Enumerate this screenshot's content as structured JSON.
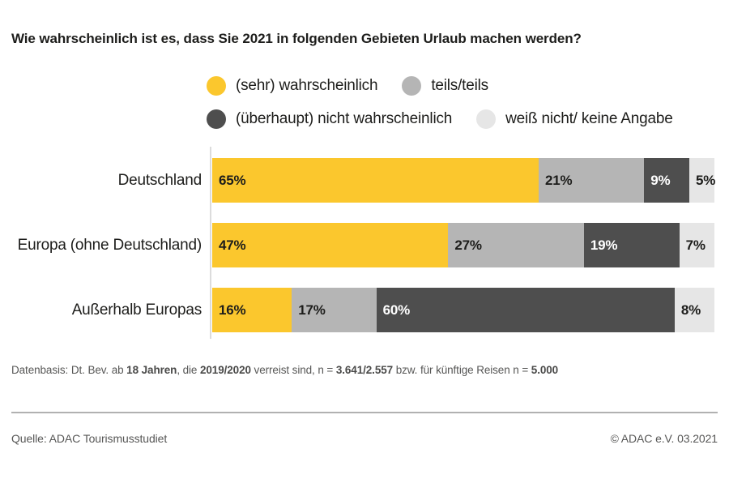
{
  "title": "Wie wahrscheinlich ist es, dass Sie 2021 in folgenden Gebieten Urlaub machen werden?",
  "chart_data": {
    "type": "bar",
    "orientation": "horizontal",
    "stacked": true,
    "unit": "%",
    "xlim": [
      0,
      100
    ],
    "grid": false,
    "legend_position": "top",
    "title": "Wie wahrscheinlich ist es, dass Sie 2021 in folgenden Gebieten Urlaub machen werden?",
    "categories": [
      "Deutschland",
      "Europa (ohne Deutschland)",
      "Außerhalb Europas"
    ],
    "series": [
      {
        "name": "(sehr) wahrscheinlich",
        "color": "#FBC72D",
        "values": [
          65,
          47,
          16
        ]
      },
      {
        "name": "teils/teils",
        "color": "#B5B5B5",
        "values": [
          21,
          27,
          17
        ]
      },
      {
        "name": "(überhaupt) nicht wahrscheinlich",
        "color": "#4E4E4E",
        "values": [
          9,
          19,
          60
        ]
      },
      {
        "name": "weiß nicht/ keine Angabe",
        "color": "#E6E6E6",
        "values": [
          5,
          7,
          8
        ]
      }
    ]
  },
  "datenbasis": {
    "p1": "Datenbasis: Dt. Bev. ab ",
    "b1": "18 Jahren",
    "p2": ", die ",
    "b2": "2019/2020",
    "p3": " verreist sind, n = ",
    "b3": "3.641/2.557",
    "p4": " bzw. für künftige Reisen n = ",
    "b4": "5.000"
  },
  "footer": {
    "source": "Quelle: ADAC Tourismusstudiet",
    "copyright": "© ADAC e.V. 03.2021"
  },
  "colors": {
    "accent_yellow": "#FBC72D",
    "gray_medium": "#B5B5B5",
    "gray_dark": "#4E4E4E",
    "gray_light": "#E6E6E6",
    "text_dark": "#1D1D1B",
    "text_gray": "#575756"
  }
}
